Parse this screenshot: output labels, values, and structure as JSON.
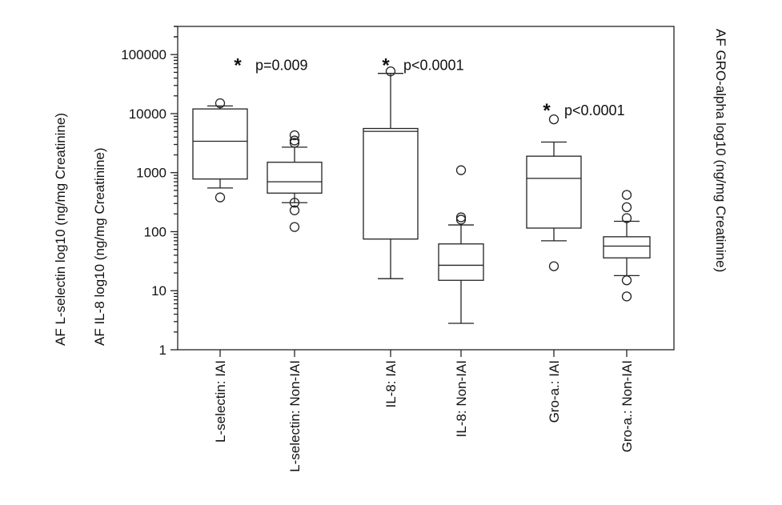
{
  "chart_data": {
    "type": "box",
    "title": "",
    "y_scale": "log10",
    "ylim": [
      1,
      300000
    ],
    "y_ticks": [
      {
        "value": 1,
        "label": "1"
      },
      {
        "value": 10,
        "label": "10"
      },
      {
        "value": 100,
        "label": "100"
      },
      {
        "value": 1000,
        "label": "1000"
      },
      {
        "value": 10000,
        "label": "10000"
      },
      {
        "value": 100000,
        "label": "100000"
      }
    ],
    "ylabel_left_1": "AF L-selectin  log10 (ng/mg Creatinine)",
    "ylabel_left_2": "AF IL-8 log10 (ng/mg Creatinine)",
    "ylabel_right": "AF GRO-alpha  log10 (ng/mg Creatinine)",
    "categories": [
      "L-selectin: IAI",
      "L-selectin: Non-IAI",
      "IL-8: IAI",
      "IL-8: Non-IAI",
      "Gro-a.: IAI",
      "Gro-a.: Non-IAI"
    ],
    "boxes": [
      {
        "category": "L-selectin: IAI",
        "whisker_low": 550,
        "q1": 780,
        "median": 3400,
        "q3": 12000,
        "whisker_high": 13500,
        "outliers": [
          380,
          15000
        ]
      },
      {
        "category": "L-selectin: Non-IAI",
        "whisker_low": 310,
        "q1": 450,
        "median": 700,
        "q3": 1500,
        "whisker_high": 2700,
        "outliers": [
          120,
          230,
          310,
          3200,
          3500,
          4300
        ]
      },
      {
        "category": "IL-8: IAI",
        "whisker_low": 16,
        "q1": 75,
        "median": 5000,
        "q3": 5600,
        "whisker_high": 48000,
        "outliers": [
          52000
        ]
      },
      {
        "category": "IL-8: Non-IAI",
        "whisker_low": 2.8,
        "q1": 15,
        "median": 27,
        "q3": 62,
        "whisker_high": 130,
        "outliers": [
          160,
          175,
          1100
        ]
      },
      {
        "category": "Gro-a.: IAI",
        "whisker_low": 70,
        "q1": 115,
        "median": 800,
        "q3": 1900,
        "whisker_high": 3300,
        "outliers": [
          26,
          8000
        ]
      },
      {
        "category": "Gro-a.: Non-IAI",
        "whisker_low": 18,
        "q1": 36,
        "median": 57,
        "q3": 82,
        "whisker_high": 150,
        "outliers": [
          8,
          15,
          170,
          260,
          420
        ]
      }
    ],
    "annotations": [
      {
        "star": "*",
        "text": "p=0.009",
        "y": 70000
      },
      {
        "star": "*",
        "text": "p<0.0001",
        "y": 70000
      },
      {
        "star": "*",
        "text": "p<0.0001",
        "y": 12000
      }
    ]
  }
}
